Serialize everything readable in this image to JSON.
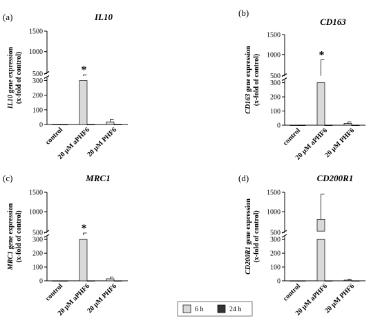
{
  "legend": {
    "items": [
      {
        "label": "6 h",
        "color": "#d9d9d9"
      },
      {
        "label": "24 h",
        "color": "#333333"
      }
    ]
  },
  "ylabel_suffix": " gene expression",
  "ylabel_line2": "(x-fold of control)",
  "chart_data": [
    {
      "type": "bar",
      "panel": "(a)",
      "title": "IL10",
      "ylabel_gene": "IL10",
      "categories": [
        "control",
        "20 µM aPHF6",
        "20 µM PHF6"
      ],
      "series": [
        {
          "name": "6 h",
          "values": [
            1,
            320,
            18
          ],
          "errors": [
            0,
            95,
            18
          ]
        },
        {
          "name": "24 h",
          "values": [
            1,
            1,
            1
          ],
          "errors": [
            0,
            0,
            0
          ]
        }
      ],
      "significance": [
        "",
        "*",
        ""
      ],
      "yticks_lower": [
        0,
        100,
        200,
        300
      ],
      "yticks_upper": [
        500,
        1000,
        1500
      ],
      "axis_break": true,
      "ylim": [
        0,
        1500
      ]
    },
    {
      "type": "bar",
      "panel": "(b)",
      "title": "CD163",
      "ylabel_gene": "CD163",
      "categories": [
        "control",
        "20 µM aPHF6",
        "20 µM PHF6"
      ],
      "series": [
        {
          "name": "6 h",
          "values": [
            1,
            500,
            12
          ],
          "errors": [
            0,
            370,
            12
          ]
        },
        {
          "name": "24 h",
          "values": [
            1,
            1,
            1
          ],
          "errors": [
            0,
            0,
            0
          ]
        }
      ],
      "significance": [
        "",
        "*",
        ""
      ],
      "yticks_lower": [
        0,
        100,
        200,
        300
      ],
      "yticks_upper": [
        500,
        1000,
        1500
      ],
      "axis_break": true,
      "ylim": [
        0,
        1500
      ]
    },
    {
      "type": "bar",
      "panel": "(c)",
      "title": "MRC1",
      "ylabel_gene": "MRC1",
      "categories": [
        "control",
        "20 µM aPHF6",
        "20 µM PHF6"
      ],
      "series": [
        {
          "name": "6 h",
          "values": [
            1,
            310,
            15
          ],
          "errors": [
            0,
            150,
            12
          ]
        },
        {
          "name": "24 h",
          "values": [
            1,
            1,
            1
          ],
          "errors": [
            0,
            0,
            0
          ]
        }
      ],
      "significance": [
        "",
        "*",
        ""
      ],
      "yticks_lower": [
        0,
        100,
        200,
        300
      ],
      "yticks_upper": [
        500,
        1000,
        1500
      ],
      "axis_break": true,
      "ylim": [
        0,
        1500
      ]
    },
    {
      "type": "bar",
      "panel": "(d)",
      "title": "CD200R1",
      "ylabel_gene": "CD200R1",
      "categories": [
        "control",
        "20 µM aPHF6",
        "20 µM PHF6"
      ],
      "series": [
        {
          "name": "6 h",
          "values": [
            1,
            800,
            5
          ],
          "errors": [
            0,
            650,
            5
          ]
        },
        {
          "name": "24 h",
          "values": [
            1,
            1,
            1
          ],
          "errors": [
            0,
            0,
            0
          ]
        }
      ],
      "significance": [
        "",
        "",
        ""
      ],
      "yticks_lower": [
        0,
        100,
        200,
        300
      ],
      "yticks_upper": [
        500,
        1000,
        1500
      ],
      "axis_break": true,
      "ylim": [
        0,
        1500
      ]
    }
  ]
}
